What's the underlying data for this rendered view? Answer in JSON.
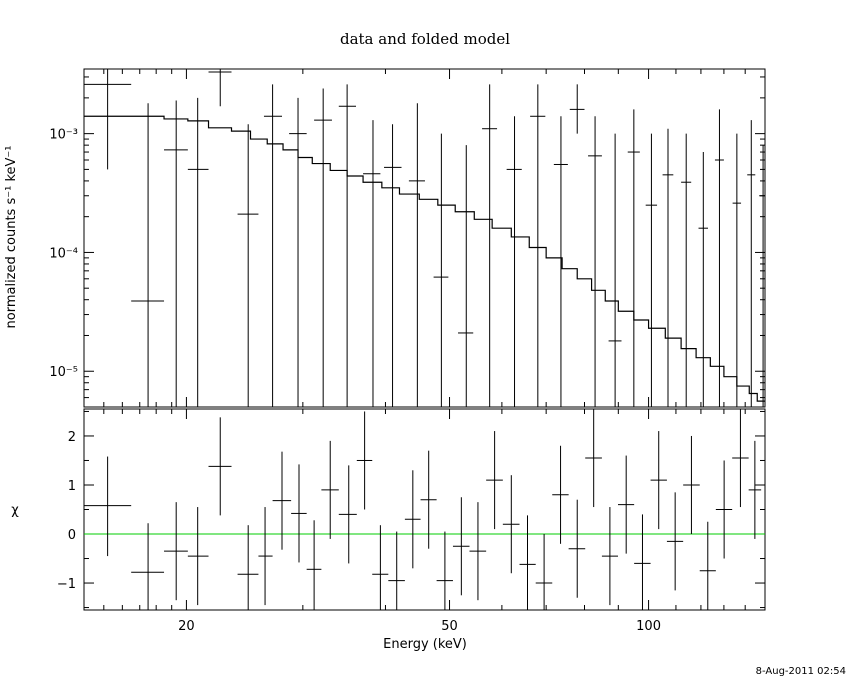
{
  "chart_data": [
    {
      "type": "line",
      "panel": "spectrum",
      "title": "data and folded model",
      "ylabel": "normalized counts s⁻¹ keV⁻¹",
      "xscale": "log",
      "yscale": "log",
      "xlim": [
        14,
        150
      ],
      "ylim": [
        5e-06,
        0.0035
      ],
      "yticks": [
        1e-05,
        0.0001,
        0.001
      ],
      "ytick_labels": [
        "10⁻⁵",
        "10⁻⁴",
        "10⁻³"
      ],
      "data_points": [
        {
          "x": 15.2,
          "y": 0.0026,
          "xlo": 14.0,
          "xhi": 16.5,
          "ylo": 0.0005,
          "yhi": 0.0035
        },
        {
          "x": 17.5,
          "y": 3.9e-05,
          "xlo": 16.5,
          "xhi": 18.5,
          "ylo": 5e-06,
          "yhi": 0.0018
        },
        {
          "x": 19.3,
          "y": 0.00073,
          "xlo": 18.5,
          "xhi": 20.1,
          "ylo": 5e-06,
          "yhi": 0.0019
        },
        {
          "x": 20.8,
          "y": 0.0005,
          "xlo": 20.1,
          "xhi": 21.6,
          "ylo": 5e-06,
          "yhi": 0.002
        },
        {
          "x": 22.5,
          "y": 0.0033,
          "xlo": 21.6,
          "xhi": 23.4,
          "ylo": 0.0017,
          "yhi": 0.0035
        },
        {
          "x": 24.8,
          "y": 0.00021,
          "xlo": 23.9,
          "xhi": 25.7,
          "ylo": 5e-06,
          "yhi": 0.0012
        },
        {
          "x": 27.0,
          "y": 0.0014,
          "xlo": 26.2,
          "xhi": 27.9,
          "ylo": 5e-06,
          "yhi": 0.0026
        },
        {
          "x": 29.5,
          "y": 0.001,
          "xlo": 28.6,
          "xhi": 30.4,
          "ylo": 5e-06,
          "yhi": 0.002
        },
        {
          "x": 32.2,
          "y": 0.0013,
          "xlo": 31.2,
          "xhi": 33.2,
          "ylo": 5e-06,
          "yhi": 0.0024
        },
        {
          "x": 35.0,
          "y": 0.0017,
          "xlo": 34.0,
          "xhi": 36.1,
          "ylo": 5e-06,
          "yhi": 0.0026
        },
        {
          "x": 38.3,
          "y": 0.00046,
          "xlo": 37.0,
          "xhi": 39.3,
          "ylo": 5e-06,
          "yhi": 0.0013
        },
        {
          "x": 41.0,
          "y": 0.00052,
          "xlo": 39.8,
          "xhi": 42.3,
          "ylo": 5e-06,
          "yhi": 0.0012
        },
        {
          "x": 44.7,
          "y": 0.0004,
          "xlo": 43.4,
          "xhi": 45.9,
          "ylo": 5e-06,
          "yhi": 0.0018
        },
        {
          "x": 48.6,
          "y": 6.2e-05,
          "xlo": 47.3,
          "xhi": 49.8,
          "ylo": 5e-06,
          "yhi": 0.001
        },
        {
          "x": 53.0,
          "y": 2.1e-05,
          "xlo": 51.5,
          "xhi": 54.3,
          "ylo": 5e-06,
          "yhi": 0.0008
        },
        {
          "x": 57.5,
          "y": 0.0011,
          "xlo": 56.0,
          "xhi": 59.0,
          "ylo": 5e-06,
          "yhi": 0.0026
        },
        {
          "x": 62.7,
          "y": 0.0005,
          "xlo": 61.0,
          "xhi": 64.3,
          "ylo": 5e-06,
          "yhi": 0.0014
        },
        {
          "x": 68.0,
          "y": 0.0014,
          "xlo": 66.2,
          "xhi": 69.8,
          "ylo": 5e-06,
          "yhi": 0.0026
        },
        {
          "x": 73.7,
          "y": 0.00055,
          "xlo": 71.9,
          "xhi": 75.5,
          "ylo": 5e-06,
          "yhi": 0.0014
        },
        {
          "x": 78.0,
          "y": 0.0016,
          "xlo": 76.0,
          "xhi": 80.0,
          "ylo": 0.001,
          "yhi": 0.0026
        },
        {
          "x": 83.0,
          "y": 0.00065,
          "xlo": 81.0,
          "xhi": 85.0,
          "ylo": 5e-06,
          "yhi": 0.0014
        },
        {
          "x": 89.0,
          "y": 1.8e-05,
          "xlo": 87.0,
          "xhi": 91.0,
          "ylo": 5e-06,
          "yhi": 0.001
        },
        {
          "x": 95.0,
          "y": 0.0007,
          "xlo": 93.0,
          "xhi": 97.0,
          "ylo": 5e-06,
          "yhi": 0.0016
        },
        {
          "x": 101.0,
          "y": 0.00025,
          "xlo": 99.0,
          "xhi": 103.0,
          "ylo": 5e-06,
          "yhi": 0.001
        },
        {
          "x": 107.0,
          "y": 0.00045,
          "xlo": 105.0,
          "xhi": 109.0,
          "ylo": 5e-06,
          "yhi": 0.0011
        },
        {
          "x": 114.0,
          "y": 0.00039,
          "xlo": 112.0,
          "xhi": 116.0,
          "ylo": 5e-06,
          "yhi": 0.001
        },
        {
          "x": 121.0,
          "y": 0.00016,
          "xlo": 119.0,
          "xhi": 123.0,
          "ylo": 5e-06,
          "yhi": 0.0007
        },
        {
          "x": 128.0,
          "y": 0.0006,
          "xlo": 126.0,
          "xhi": 130.0,
          "ylo": 5e-06,
          "yhi": 0.0016
        },
        {
          "x": 136.0,
          "y": 0.00026,
          "xlo": 134.0,
          "xhi": 138.0,
          "ylo": 5e-06,
          "yhi": 0.001
        },
        {
          "x": 143.0,
          "y": 0.00045,
          "xlo": 141.0,
          "xhi": 145.0,
          "ylo": 5e-06,
          "yhi": 0.0013
        },
        {
          "x": 149.0,
          "y": 0.0003,
          "xlo": 147.0,
          "xhi": 150.0,
          "ylo": 5e-06,
          "yhi": 0.0008
        }
      ],
      "model_step": [
        {
          "x0": 14.0,
          "x1": 16.5,
          "y": 0.0014
        },
        {
          "x0": 16.5,
          "x1": 18.5,
          "y": 0.0014
        },
        {
          "x0": 18.5,
          "x1": 20.1,
          "y": 0.00133
        },
        {
          "x0": 20.1,
          "x1": 21.6,
          "y": 0.00128
        },
        {
          "x0": 21.6,
          "x1": 23.4,
          "y": 0.00112
        },
        {
          "x0": 23.4,
          "x1": 25.0,
          "y": 0.00105
        },
        {
          "x0": 25.0,
          "x1": 26.5,
          "y": 0.0009
        },
        {
          "x0": 26.5,
          "x1": 28.0,
          "y": 0.00082
        },
        {
          "x0": 28.0,
          "x1": 29.5,
          "y": 0.00073
        },
        {
          "x0": 29.5,
          "x1": 31.0,
          "y": 0.00063
        },
        {
          "x0": 31.0,
          "x1": 33.0,
          "y": 0.00056
        },
        {
          "x0": 33.0,
          "x1": 35.0,
          "y": 0.00049
        },
        {
          "x0": 35.0,
          "x1": 37.0,
          "y": 0.00044
        },
        {
          "x0": 37.0,
          "x1": 39.5,
          "y": 0.00039
        },
        {
          "x0": 39.5,
          "x1": 42.0,
          "y": 0.00035
        },
        {
          "x0": 42.0,
          "x1": 45.0,
          "y": 0.00031
        },
        {
          "x0": 45.0,
          "x1": 48.0,
          "y": 0.00028
        },
        {
          "x0": 48.0,
          "x1": 51.0,
          "y": 0.00025
        },
        {
          "x0": 51.0,
          "x1": 54.5,
          "y": 0.00022
        },
        {
          "x0": 54.5,
          "x1": 58.0,
          "y": 0.00019
        },
        {
          "x0": 58.0,
          "x1": 62.0,
          "y": 0.00016
        },
        {
          "x0": 62.0,
          "x1": 66.0,
          "y": 0.000135
        },
        {
          "x0": 66.0,
          "x1": 70.0,
          "y": 0.00011
        },
        {
          "x0": 70.0,
          "x1": 74.0,
          "y": 9e-05
        },
        {
          "x0": 74.0,
          "x1": 78.0,
          "y": 7.3e-05
        },
        {
          "x0": 78.0,
          "x1": 82.0,
          "y": 6e-05
        },
        {
          "x0": 82.0,
          "x1": 86.0,
          "y": 4.8e-05
        },
        {
          "x0": 86.0,
          "x1": 90.0,
          "y": 3.9e-05
        },
        {
          "x0": 90.0,
          "x1": 95.0,
          "y": 3.2e-05
        },
        {
          "x0": 95.0,
          "x1": 100.0,
          "y": 2.7e-05
        },
        {
          "x0": 100.0,
          "x1": 106.0,
          "y": 2.3e-05
        },
        {
          "x0": 106.0,
          "x1": 112.0,
          "y": 1.9e-05
        },
        {
          "x0": 112.0,
          "x1": 118.0,
          "y": 1.55e-05
        },
        {
          "x0": 118.0,
          "x1": 124.0,
          "y": 1.3e-05
        },
        {
          "x0": 124.0,
          "x1": 130.0,
          "y": 1.1e-05
        },
        {
          "x0": 130.0,
          "x1": 136.0,
          "y": 9e-06
        },
        {
          "x0": 136.0,
          "x1": 142.0,
          "y": 7.5e-06
        },
        {
          "x0": 142.0,
          "x1": 146.0,
          "y": 6.5e-06
        },
        {
          "x0": 146.0,
          "x1": 150.0,
          "y": 5.6e-06
        }
      ]
    },
    {
      "type": "scatter",
      "panel": "residuals",
      "ylabel": "χ",
      "xlabel": "Energy (keV)",
      "xscale": "log",
      "xlim": [
        14,
        150
      ],
      "ylim": [
        -1.55,
        2.55
      ],
      "yticks": [
        -1,
        0,
        1,
        2
      ],
      "ytick_labels": [
        "−1",
        "0",
        "1",
        "2"
      ],
      "xticks": [
        20,
        50,
        100
      ],
      "xtick_labels": [
        "20",
        "50",
        "100"
      ],
      "zero_line_color": "#00cc00",
      "points": [
        {
          "x": 15.2,
          "y": 0.58,
          "xlo": 14.0,
          "xhi": 16.5,
          "ylo": -0.45,
          "yhi": 1.58
        },
        {
          "x": 17.5,
          "y": -0.78,
          "xlo": 16.5,
          "xhi": 18.5,
          "ylo": -1.55,
          "yhi": 0.22
        },
        {
          "x": 19.3,
          "y": -0.35,
          "xlo": 18.5,
          "xhi": 20.1,
          "ylo": -1.35,
          "yhi": 0.65
        },
        {
          "x": 20.8,
          "y": -0.45,
          "xlo": 20.1,
          "xhi": 21.6,
          "ylo": -1.45,
          "yhi": 0.55
        },
        {
          "x": 22.5,
          "y": 1.38,
          "xlo": 21.6,
          "xhi": 23.4,
          "ylo": 0.38,
          "yhi": 2.38
        },
        {
          "x": 24.8,
          "y": -0.82,
          "xlo": 23.9,
          "xhi": 25.7,
          "ylo": -1.55,
          "yhi": 0.18
        },
        {
          "x": 26.3,
          "y": -0.45,
          "xlo": 25.7,
          "xhi": 27.0,
          "ylo": -1.45,
          "yhi": 0.55
        },
        {
          "x": 27.9,
          "y": 0.68,
          "xlo": 27.0,
          "xhi": 28.8,
          "ylo": -0.32,
          "yhi": 1.68
        },
        {
          "x": 29.6,
          "y": 0.42,
          "xlo": 28.8,
          "xhi": 30.4,
          "ylo": -0.58,
          "yhi": 1.42
        },
        {
          "x": 31.2,
          "y": -0.72,
          "xlo": 30.4,
          "xhi": 32.0,
          "ylo": -1.55,
          "yhi": 0.28
        },
        {
          "x": 33.0,
          "y": 0.9,
          "xlo": 32.0,
          "xhi": 34.0,
          "ylo": -0.1,
          "yhi": 1.9
        },
        {
          "x": 35.2,
          "y": 0.4,
          "xlo": 34.0,
          "xhi": 36.2,
          "ylo": -0.6,
          "yhi": 1.4
        },
        {
          "x": 37.2,
          "y": 1.5,
          "xlo": 36.2,
          "xhi": 38.2,
          "ylo": 0.5,
          "yhi": 2.5
        },
        {
          "x": 39.3,
          "y": -0.82,
          "xlo": 38.2,
          "xhi": 40.4,
          "ylo": -1.55,
          "yhi": 0.18
        },
        {
          "x": 41.6,
          "y": -0.95,
          "xlo": 40.4,
          "xhi": 42.8,
          "ylo": -1.55,
          "yhi": 0.05
        },
        {
          "x": 44.0,
          "y": 0.3,
          "xlo": 42.8,
          "xhi": 45.2,
          "ylo": -0.7,
          "yhi": 1.3
        },
        {
          "x": 46.5,
          "y": 0.7,
          "xlo": 45.2,
          "xhi": 47.8,
          "ylo": -0.3,
          "yhi": 1.7
        },
        {
          "x": 49.2,
          "y": -0.95,
          "xlo": 47.8,
          "xhi": 50.6,
          "ylo": -1.55,
          "yhi": 0.05
        },
        {
          "x": 52.1,
          "y": -0.25,
          "xlo": 50.6,
          "xhi": 53.6,
          "ylo": -1.25,
          "yhi": 0.75
        },
        {
          "x": 55.2,
          "y": -0.35,
          "xlo": 53.6,
          "xhi": 56.8,
          "ylo": -1.35,
          "yhi": 0.65
        },
        {
          "x": 58.5,
          "y": 1.1,
          "xlo": 56.8,
          "xhi": 60.2,
          "ylo": 0.1,
          "yhi": 2.1
        },
        {
          "x": 62.0,
          "y": 0.2,
          "xlo": 60.2,
          "xhi": 63.8,
          "ylo": -0.8,
          "yhi": 1.2
        },
        {
          "x": 65.6,
          "y": -0.62,
          "xlo": 63.8,
          "xhi": 67.5,
          "ylo": -1.55,
          "yhi": 0.38
        },
        {
          "x": 69.5,
          "y": -1.0,
          "xlo": 67.5,
          "xhi": 71.5,
          "ylo": -1.55,
          "yhi": 0.0
        },
        {
          "x": 73.6,
          "y": 0.8,
          "xlo": 71.5,
          "xhi": 75.7,
          "ylo": -0.2,
          "yhi": 1.8
        },
        {
          "x": 78.0,
          "y": -0.3,
          "xlo": 75.7,
          "xhi": 80.2,
          "ylo": -1.3,
          "yhi": 0.7
        },
        {
          "x": 82.6,
          "y": 1.55,
          "xlo": 80.2,
          "xhi": 85.0,
          "ylo": 0.55,
          "yhi": 2.55
        },
        {
          "x": 87.4,
          "y": -0.45,
          "xlo": 85.0,
          "xhi": 89.9,
          "ylo": -1.45,
          "yhi": 0.55
        },
        {
          "x": 92.5,
          "y": 0.6,
          "xlo": 89.9,
          "xhi": 95.1,
          "ylo": -0.4,
          "yhi": 1.6
        },
        {
          "x": 97.9,
          "y": -0.6,
          "xlo": 95.1,
          "xhi": 100.7,
          "ylo": -1.55,
          "yhi": 0.4
        },
        {
          "x": 103.6,
          "y": 1.1,
          "xlo": 100.7,
          "xhi": 106.6,
          "ylo": 0.1,
          "yhi": 2.1
        },
        {
          "x": 109.7,
          "y": -0.15,
          "xlo": 106.6,
          "xhi": 112.8,
          "ylo": -1.15,
          "yhi": 0.85
        },
        {
          "x": 116.1,
          "y": 1.0,
          "xlo": 112.8,
          "xhi": 119.5,
          "ylo": 0.0,
          "yhi": 2.0
        },
        {
          "x": 122.9,
          "y": -0.75,
          "xlo": 119.5,
          "xhi": 126.4,
          "ylo": -1.55,
          "yhi": 0.25
        },
        {
          "x": 130.1,
          "y": 0.5,
          "xlo": 126.4,
          "xhi": 133.8,
          "ylo": -0.5,
          "yhi": 1.5
        },
        {
          "x": 137.7,
          "y": 1.55,
          "xlo": 133.8,
          "xhi": 141.7,
          "ylo": 0.55,
          "yhi": 2.55
        },
        {
          "x": 144.8,
          "y": 0.9,
          "xlo": 141.7,
          "xhi": 148.0,
          "ylo": -0.1,
          "yhi": 1.9
        }
      ]
    }
  ],
  "timestamp": "8-Aug-2011 02:54"
}
